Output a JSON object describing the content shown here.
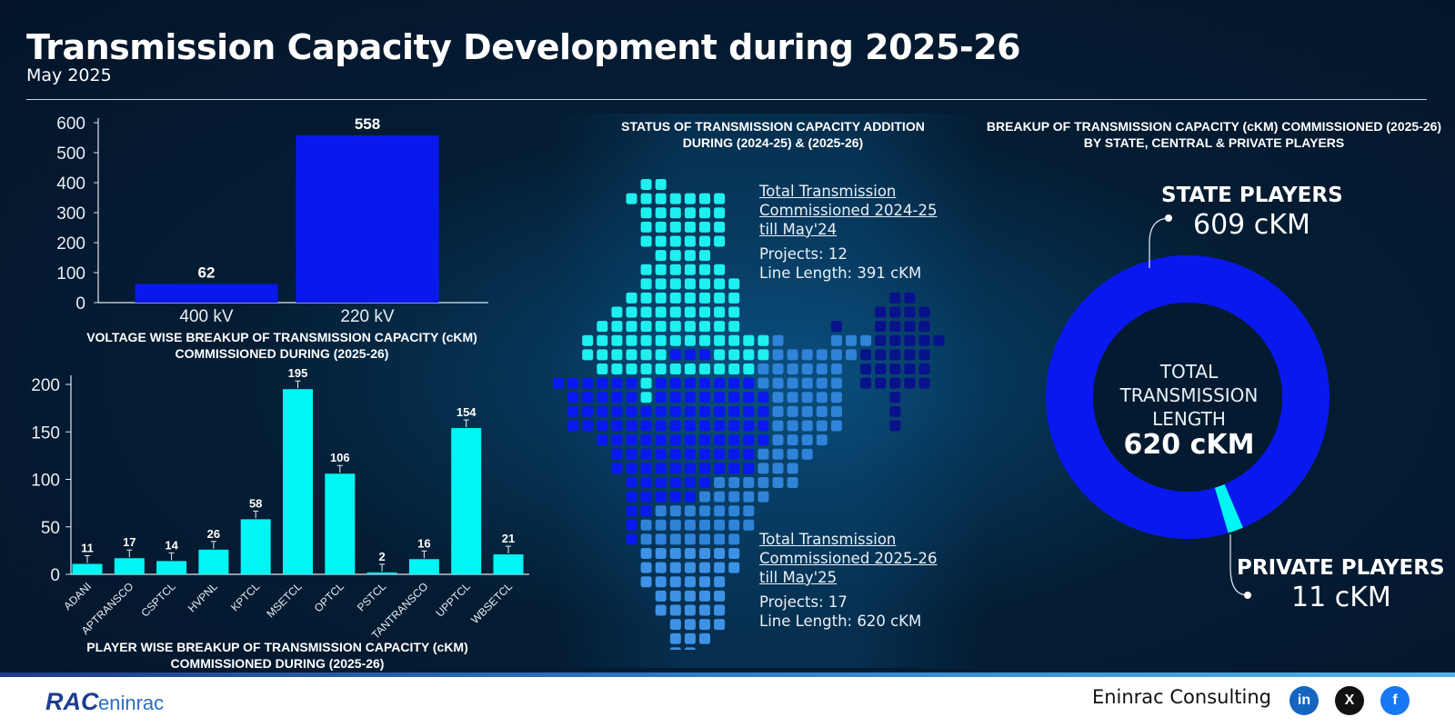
{
  "header": {
    "title": "Transmission Capacity Development during 2025-26",
    "subtitle": "May 2025"
  },
  "chart_data": [
    {
      "type": "bar",
      "title": "VOLTAGE WISE BREAKUP OF TRANSMISSION CAPACITY (cKM) COMMISSIONED DURING (2025-26)",
      "categories": [
        "400 kV",
        "220 kV"
      ],
      "values": [
        62,
        558
      ],
      "ylim": [
        0,
        600
      ],
      "yticks": [
        0,
        100,
        200,
        300,
        400,
        500,
        600
      ],
      "xlabel": "",
      "ylabel": "",
      "color": "#0a18f0",
      "grid": false
    },
    {
      "type": "bar",
      "title": "PLAYER WISE BREAKUP OF TRANSMISSION CAPACITY (cKM) COMMISSIONED DURING (2025-26)",
      "categories": [
        "ADANI",
        "APTRANSCO",
        "CSPTCL",
        "HVPNL",
        "KPTCL",
        "MSETCL",
        "OPTCL",
        "PSTCL",
        "TANTRANSCO",
        "UPPTCL",
        "WBSETCL"
      ],
      "values": [
        11,
        17,
        14,
        26,
        58,
        195,
        106,
        2,
        16,
        154,
        21
      ],
      "ylim": [
        0,
        200
      ],
      "yticks": [
        0,
        50,
        100,
        150,
        200
      ],
      "xlabel": "",
      "ylabel": "",
      "color": "#00f5f5",
      "grid": false
    },
    {
      "type": "pie",
      "title": "BREAKUP OF TRANSMISSION CAPACITY (cKM) COMMISSIONED (2025-26) BY STATE, CENTRAL & PRIVATE PLAYERS",
      "categories": [
        "STATE PLAYERS",
        "PRIVATE PLAYERS"
      ],
      "values": [
        609,
        11
      ],
      "value_labels": [
        "609 cKM",
        "11 cKM"
      ],
      "colors": [
        "#0a18f0",
        "#00f5f5"
      ],
      "center_label": "TOTAL TRANSMISSION LENGTH",
      "center_value": "620 cKM"
    }
  ],
  "map": {
    "title": "STATUS OF TRANSMISSION CAPACITY ADDITION DURING (2024-25) & (2025-26)",
    "note_2024": {
      "heading": "Total Transmission Commissioned 2024-25 till May'24",
      "projects": "Projects: 12",
      "length": "Line Length: 391 cKM"
    },
    "note_2025": {
      "heading": "Total Transmission Commissioned 2025-26 till May'25",
      "projects": "Projects: 17",
      "length": "Line Length: 620 cKM"
    },
    "colors": {
      "north": "#1ef0f0",
      "central": "#0a18f0",
      "east": "#2f83d8",
      "northeast": "#08128a",
      "south": "#3d92e6"
    }
  },
  "footer": {
    "logo_text": "RAC eninrac",
    "brand": "Eninrac Consulting",
    "social": [
      "linkedin-icon",
      "x-icon",
      "facebook-icon"
    ]
  }
}
